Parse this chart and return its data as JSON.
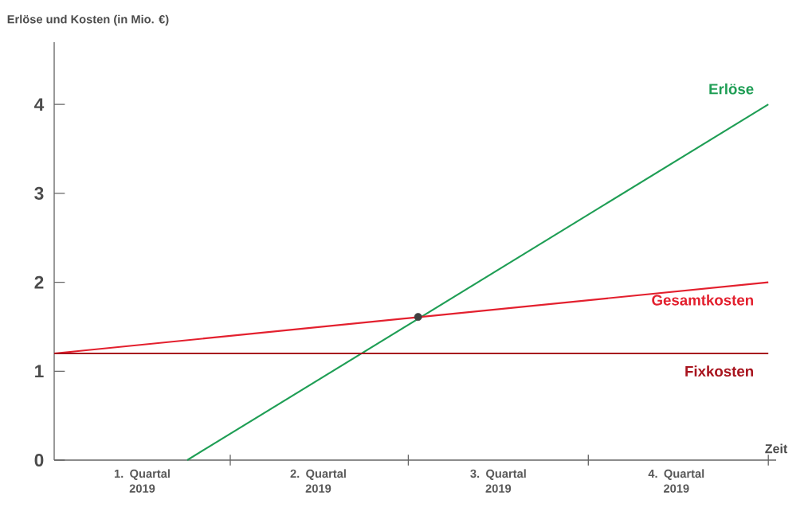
{
  "chart_data": {
    "type": "line",
    "ylabel": "Erlöse und Kosten (in Mio. €)",
    "xlabel": "Zeit",
    "xlim": [
      "2019-01-01",
      "2020-01-05"
    ],
    "ylim": [
      0,
      4.7
    ],
    "xticks": [
      {
        "value": "2019-02-15",
        "label": "1. Quartal 2019"
      },
      {
        "value": "2019-05-16",
        "label": "2. Quartal 2019"
      },
      {
        "value": "2019-08-16",
        "label": "3. Quartal 2019"
      },
      {
        "value": "2019-11-15",
        "label": "4. Quartal 2019"
      },
      {
        "value": "2019-04-01",
        "label": null
      },
      {
        "value": "2019-07-01",
        "label": null
      },
      {
        "value": "2019-10-01",
        "label": null
      },
      {
        "value": "2020-01-01",
        "label": null
      }
    ],
    "yticks": [
      0,
      1,
      2,
      3,
      4
    ],
    "series": [
      {
        "name": "Erlöse",
        "color": "#1f9e55",
        "x": [
          "2019-03-10",
          "2020-01-01"
        ],
        "values": [
          0,
          4
        ]
      },
      {
        "name": "Gesamtkosten",
        "color": "#e3202e",
        "x": [
          "2019-01-01",
          "2020-01-01"
        ],
        "values": [
          1.2,
          2.0
        ]
      },
      {
        "name": "Fixkosten",
        "color": "#a8141e",
        "x": [
          "2019-01-01",
          "2020-01-01"
        ],
        "values": [
          1.2,
          1.2
        ]
      },
      {
        "type": "scatter",
        "marker": "circle",
        "color": "#404040",
        "x": [
          "2019-07-06"
        ],
        "values": [
          1.61
        ]
      }
    ]
  }
}
